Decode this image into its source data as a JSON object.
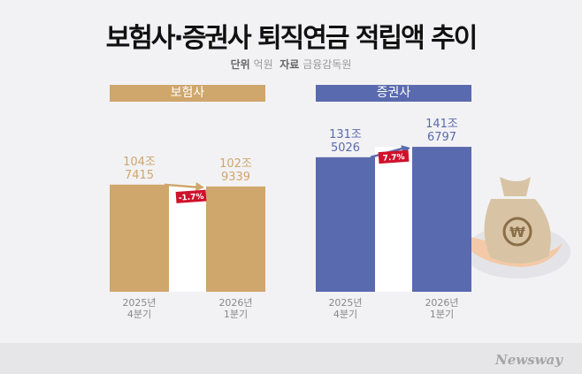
{
  "title": "보험사·증권사 퇴직연금 적립액 추이",
  "unit_label": "단위",
  "unit": "억원",
  "source_label": "자료",
  "source": "금융감독원",
  "chart_data": [
    {
      "type": "bar",
      "title": "보험사",
      "color": "#cfa66c",
      "categories": [
        "2025년 4분기",
        "2026년 1분기"
      ],
      "values": [
        1047415,
        1029339
      ],
      "value_labels": [
        [
          "104조",
          "7415"
        ],
        [
          "102조",
          "9339"
        ]
      ],
      "change": "-1.7%"
    },
    {
      "type": "bar",
      "title": "증권사",
      "color": "#5a6aae",
      "categories": [
        "2025년 4분기",
        "2026년 1분기"
      ],
      "values": [
        1315026,
        1416797
      ],
      "value_labels": [
        [
          "131조",
          "5026"
        ],
        [
          "141조",
          "6797"
        ]
      ],
      "change": "7.7%"
    }
  ],
  "change_badge_color": "#d0112b",
  "brand": "Newsway"
}
